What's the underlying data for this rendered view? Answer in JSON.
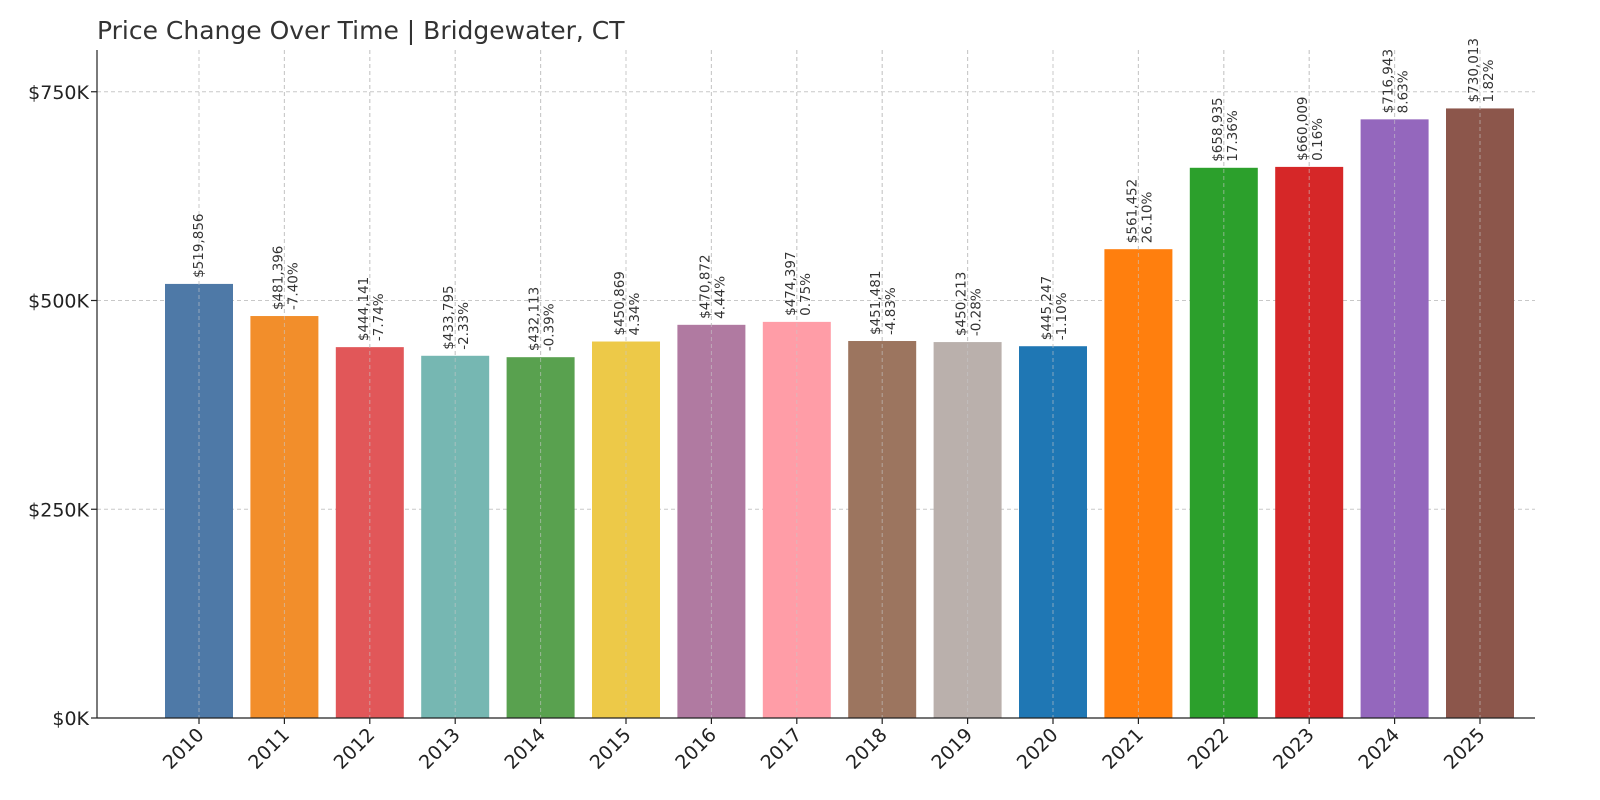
{
  "chart_data": {
    "type": "bar",
    "title": "Price Change Over Time | Bridgewater, CT",
    "xlabel": "",
    "ylabel": "",
    "ylim": [
      0,
      800000
    ],
    "yticks": [
      0,
      250000,
      500000,
      750000
    ],
    "ytick_labels": [
      "$0K",
      "$250K",
      "$500K",
      "$750K"
    ],
    "grid": true,
    "categories": [
      "2010",
      "2011",
      "2012",
      "2013",
      "2014",
      "2015",
      "2016",
      "2017",
      "2018",
      "2019",
      "2020",
      "2021",
      "2022",
      "2023",
      "2024",
      "2025"
    ],
    "values": [
      519856,
      481396,
      444141,
      433795,
      432113,
      450869,
      470872,
      474397,
      451481,
      450213,
      445247,
      561452,
      658935,
      660009,
      716943,
      730013
    ],
    "value_labels": [
      "$519,856",
      "$481,396",
      "$444,141",
      "$433,795",
      "$432,113",
      "$450,869",
      "$470,872",
      "$474,397",
      "$451,481",
      "$450,213",
      "$445,247",
      "$561,452",
      "$658,935",
      "$660,009",
      "$716,943",
      "$730,013"
    ],
    "change_labels": [
      "",
      "-7.40%",
      "-7.74%",
      "-2.33%",
      "-0.39%",
      "4.34%",
      "4.44%",
      "0.75%",
      "-4.83%",
      "-0.28%",
      "-1.10%",
      "26.10%",
      "17.36%",
      "0.16%",
      "8.63%",
      "1.82%"
    ],
    "colors": [
      "#4e79a7",
      "#f28e2b",
      "#e15759",
      "#76b7b2",
      "#59a14f",
      "#edc948",
      "#b07aa1",
      "#ff9da7",
      "#9c755f",
      "#bab0ac",
      "#1f77b4",
      "#ff7f0e",
      "#2ca02c",
      "#d62728",
      "#9467bd",
      "#8c564b"
    ]
  }
}
